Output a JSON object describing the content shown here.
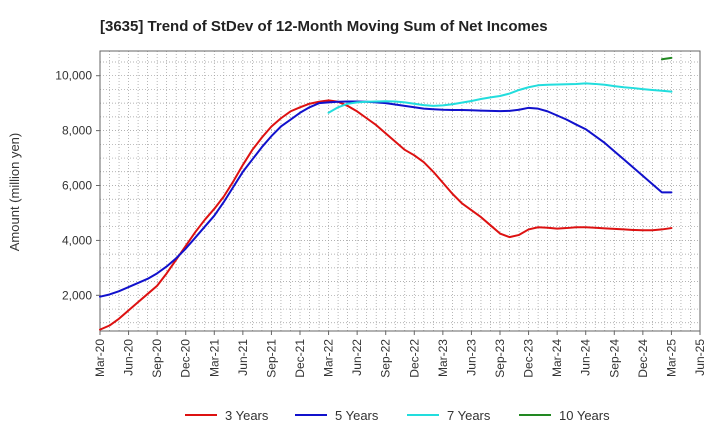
{
  "chart_data": {
    "type": "line",
    "title": "[3635]  Trend of StDev of 12-Month Moving Sum of Net Incomes",
    "xlabel": "",
    "ylabel": "Amount (million yen)",
    "ylim": [
      700,
      10900
    ],
    "yticks": [
      2000,
      4000,
      6000,
      8000,
      10000
    ],
    "ytick_labels": [
      "2,000",
      "4,000",
      "6,000",
      "8,000",
      "10,000"
    ],
    "xlim": [
      "2020-03",
      "2025-06"
    ],
    "xticks": [
      "Mar-20",
      "Jun-20",
      "Sep-20",
      "Dec-20",
      "Mar-21",
      "Jun-21",
      "Sep-21",
      "Dec-21",
      "Mar-22",
      "Jun-22",
      "Sep-22",
      "Dec-22",
      "Mar-23",
      "Jun-23",
      "Sep-23",
      "Dec-23",
      "Mar-24",
      "Jun-24",
      "Sep-24",
      "Dec-24",
      "Mar-25",
      "Jun-25"
    ],
    "grid": true,
    "legend_position": "bottom",
    "series": [
      {
        "name": "3 Years",
        "color": "#dd1111",
        "x": [
          "2020-03",
          "2020-04",
          "2020-05",
          "2020-06",
          "2020-07",
          "2020-08",
          "2020-09",
          "2020-10",
          "2020-11",
          "2020-12",
          "2021-01",
          "2021-02",
          "2021-03",
          "2021-04",
          "2021-05",
          "2021-06",
          "2021-07",
          "2021-08",
          "2021-09",
          "2021-10",
          "2021-11",
          "2021-12",
          "2022-01",
          "2022-02",
          "2022-03",
          "2022-04",
          "2022-05",
          "2022-06",
          "2022-07",
          "2022-08",
          "2022-09",
          "2022-10",
          "2022-11",
          "2022-12",
          "2023-01",
          "2023-02",
          "2023-03",
          "2023-04",
          "2023-05",
          "2023-06",
          "2023-07",
          "2023-08",
          "2023-09",
          "2023-10",
          "2023-11",
          "2023-12",
          "2024-01",
          "2024-02",
          "2024-03",
          "2024-04",
          "2024-05",
          "2024-06",
          "2024-07",
          "2024-08",
          "2024-09",
          "2024-10",
          "2024-11",
          "2024-12",
          "2025-01",
          "2025-02",
          "2025-03"
        ],
        "values": [
          750,
          900,
          1150,
          1450,
          1750,
          2050,
          2350,
          2800,
          3300,
          3800,
          4300,
          4750,
          5150,
          5600,
          6150,
          6750,
          7300,
          7750,
          8150,
          8450,
          8700,
          8850,
          8980,
          9050,
          9100,
          9050,
          8900,
          8700,
          8450,
          8200,
          7900,
          7600,
          7300,
          7100,
          6850,
          6500,
          6100,
          5700,
          5350,
          5100,
          4850,
          4550,
          4250,
          4120,
          4200,
          4400,
          4480,
          4460,
          4430,
          4450,
          4480,
          4480,
          4460,
          4440,
          4420,
          4400,
          4380,
          4370,
          4370,
          4400,
          4450
        ]
      },
      {
        "name": "5 Years",
        "color": "#1111cc",
        "x": [
          "2020-03",
          "2020-04",
          "2020-05",
          "2020-06",
          "2020-07",
          "2020-08",
          "2020-09",
          "2020-10",
          "2020-11",
          "2020-12",
          "2021-01",
          "2021-02",
          "2021-03",
          "2021-04",
          "2021-05",
          "2021-06",
          "2021-07",
          "2021-08",
          "2021-09",
          "2021-10",
          "2021-11",
          "2021-12",
          "2022-01",
          "2022-02",
          "2022-03",
          "2022-04",
          "2022-05",
          "2022-06",
          "2022-07",
          "2022-08",
          "2022-09",
          "2022-10",
          "2022-11",
          "2022-12",
          "2023-01",
          "2023-02",
          "2023-03",
          "2023-04",
          "2023-05",
          "2023-06",
          "2023-07",
          "2023-08",
          "2023-09",
          "2023-10",
          "2023-11",
          "2023-12",
          "2024-01",
          "2024-02",
          "2024-03",
          "2024-04",
          "2024-05",
          "2024-06",
          "2024-07",
          "2024-08",
          "2024-09",
          "2024-10",
          "2024-11",
          "2024-12",
          "2025-01",
          "2025-02",
          "2025-03"
        ],
        "values": [
          1950,
          2030,
          2150,
          2300,
          2450,
          2600,
          2800,
          3050,
          3350,
          3700,
          4100,
          4500,
          4900,
          5400,
          5950,
          6500,
          6950,
          7400,
          7800,
          8150,
          8400,
          8650,
          8850,
          9000,
          9030,
          9050,
          9060,
          9060,
          9050,
          9030,
          9000,
          8950,
          8900,
          8850,
          8800,
          8780,
          8760,
          8750,
          8750,
          8740,
          8730,
          8720,
          8710,
          8720,
          8760,
          8830,
          8800,
          8700,
          8550,
          8400,
          8220,
          8050,
          7800,
          7550,
          7250,
          6950,
          6650,
          6350,
          6050,
          5750,
          5750
        ]
      },
      {
        "name": "7 Years",
        "color": "#22dddd",
        "x": [
          "2022-03",
          "2022-04",
          "2022-05",
          "2022-06",
          "2022-07",
          "2022-08",
          "2022-09",
          "2022-10",
          "2022-11",
          "2022-12",
          "2023-01",
          "2023-02",
          "2023-03",
          "2023-04",
          "2023-05",
          "2023-06",
          "2023-07",
          "2023-08",
          "2023-09",
          "2023-10",
          "2023-11",
          "2023-12",
          "2024-01",
          "2024-02",
          "2024-03",
          "2024-04",
          "2024-05",
          "2024-06",
          "2024-07",
          "2024-08",
          "2024-09",
          "2024-10",
          "2024-11",
          "2024-12",
          "2025-01",
          "2025-02",
          "2025-03"
        ],
        "values": [
          8650,
          8850,
          8980,
          9030,
          9050,
          9060,
          9070,
          9060,
          9030,
          8980,
          8930,
          8900,
          8920,
          8960,
          9020,
          9080,
          9150,
          9210,
          9260,
          9350,
          9480,
          9580,
          9650,
          9670,
          9680,
          9690,
          9700,
          9720,
          9700,
          9670,
          9620,
          9580,
          9550,
          9510,
          9480,
          9450,
          9420
        ]
      },
      {
        "name": "10 Years",
        "color": "#228822",
        "x": [
          "2025-02",
          "2025-03"
        ],
        "values": [
          10600,
          10650
        ]
      }
    ]
  }
}
